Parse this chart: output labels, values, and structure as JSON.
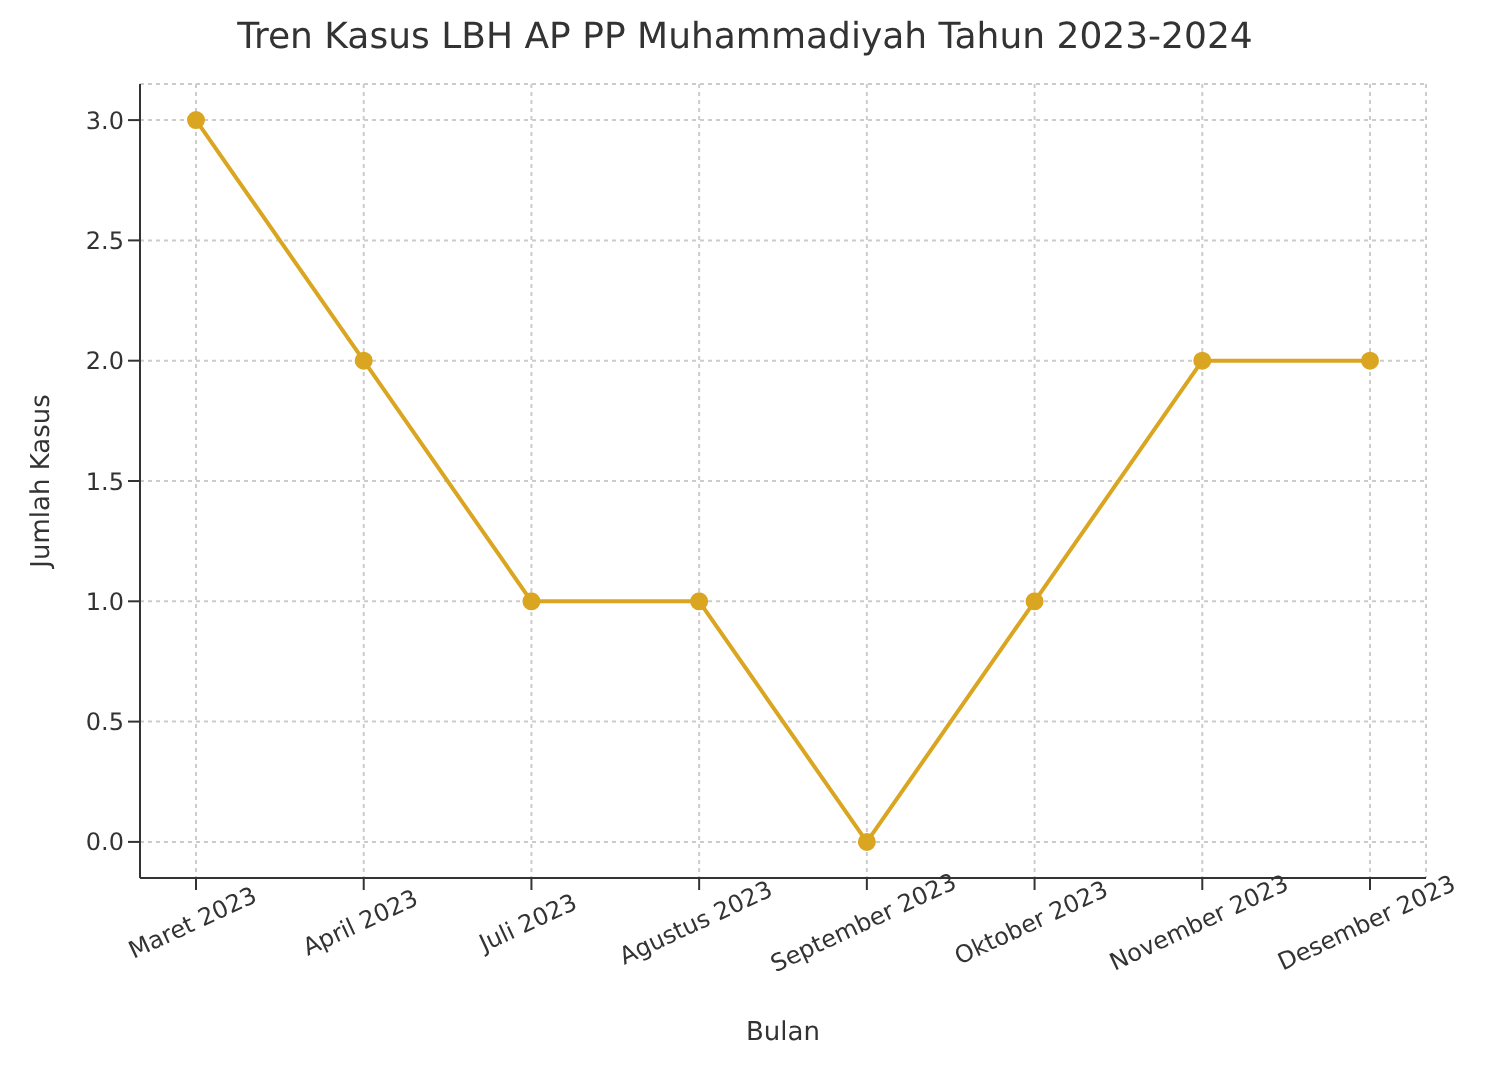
{
  "chart_data": {
    "type": "line",
    "title": "Tren Kasus LBH AP PP Muhammadiyah Tahun 2023-2024",
    "xlabel": "Bulan",
    "ylabel": "Jumlah Kasus",
    "categories": [
      "Maret 2023",
      "April 2023",
      "Juli 2023",
      "Agustus 2023",
      "September 2023",
      "Oktober 2023",
      "November 2023",
      "Desember 2023"
    ],
    "series": [
      {
        "color": "#daa520",
        "values": [
          3,
          2,
          1,
          1,
          0,
          1,
          2,
          2
        ]
      }
    ],
    "ylim": [
      -0.15,
      3.15
    ],
    "yticks": [
      {
        "value": 0,
        "label": "0.0"
      },
      {
        "value": 0.5,
        "label": "0.5"
      },
      {
        "value": 1,
        "label": "1.0"
      },
      {
        "value": 1.5,
        "label": "1.5"
      },
      {
        "value": 2,
        "label": "2.0"
      },
      {
        "value": 2.5,
        "label": "2.5"
      },
      {
        "value": 3,
        "label": "3.0"
      }
    ],
    "grid": true,
    "marker": "circle",
    "line_style": "solid"
  }
}
